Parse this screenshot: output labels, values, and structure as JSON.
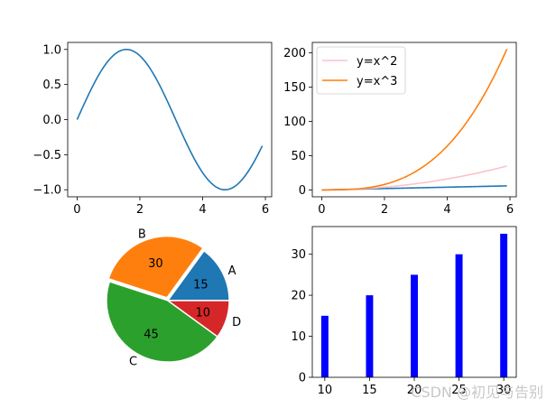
{
  "watermark": "CSDN @初见与告别",
  "chart_data": [
    {
      "type": "line",
      "title": "",
      "xlabel": "",
      "ylabel": "",
      "xlim": [
        -0.3,
        6.2
      ],
      "ylim": [
        -1.1,
        1.1
      ],
      "xticks": [
        0,
        2,
        4,
        6
      ],
      "xtick_labels": [
        "0",
        "2",
        "4",
        "6"
      ],
      "yticks": [
        -1.0,
        -0.5,
        0.0,
        0.5,
        1.0
      ],
      "ytick_labels": [
        "−1.0",
        "−0.5",
        "0.0",
        "0.5",
        "1.0"
      ],
      "series": [
        {
          "name": "sin(x)",
          "function": "sin",
          "x_range": [
            0,
            5.9
          ],
          "color": "#1f77b4"
        }
      ]
    },
    {
      "type": "line",
      "title": "",
      "xlabel": "",
      "ylabel": "",
      "xlim": [
        -0.3,
        6.2
      ],
      "ylim": [
        -10,
        215
      ],
      "xticks": [
        0,
        2,
        4,
        6
      ],
      "xtick_labels": [
        "0",
        "2",
        "4",
        "6"
      ],
      "yticks": [
        0,
        50,
        100,
        150,
        200
      ],
      "ytick_labels": [
        "0",
        "50",
        "100",
        "150",
        "200"
      ],
      "legend": "top-left",
      "series": [
        {
          "name": "x",
          "function": "linear",
          "x_range": [
            0,
            5.9
          ],
          "color": "#1f77b4",
          "in_legend": false
        },
        {
          "name": "y=x^2",
          "function": "square",
          "x_range": [
            0,
            5.9
          ],
          "color": "#ffc0cb",
          "in_legend": true
        },
        {
          "name": "y=x^3",
          "function": "cube",
          "x_range": [
            0,
            5.9
          ],
          "color": "#ff7f0e",
          "in_legend": true
        }
      ]
    },
    {
      "type": "pie",
      "title": "",
      "categories": [
        "A",
        "B",
        "C",
        "D"
      ],
      "values": [
        15,
        30,
        45,
        10
      ],
      "value_labels": [
        "15",
        "30",
        "45",
        "10"
      ],
      "colors": [
        "#1f77b4",
        "#ff7f0e",
        "#2ca02c",
        "#d62728"
      ],
      "explode": [
        0,
        0.05,
        0,
        0
      ]
    },
    {
      "type": "bar",
      "title": "",
      "xlabel": "",
      "ylabel": "",
      "categories": [
        10,
        15,
        20,
        25,
        30
      ],
      "values": [
        15,
        20,
        25,
        30,
        35
      ],
      "bar_width": 0.8,
      "color": "#0000ff",
      "xlim": [
        8.6,
        31.4
      ],
      "ylim": [
        0,
        36.75
      ],
      "xticks": [
        10,
        15,
        20,
        25,
        30
      ],
      "xtick_labels": [
        "10",
        "15",
        "20",
        "25",
        "30"
      ],
      "yticks": [
        0,
        10,
        20,
        30
      ],
      "ytick_labels": [
        "0",
        "10",
        "20",
        "30"
      ]
    }
  ]
}
